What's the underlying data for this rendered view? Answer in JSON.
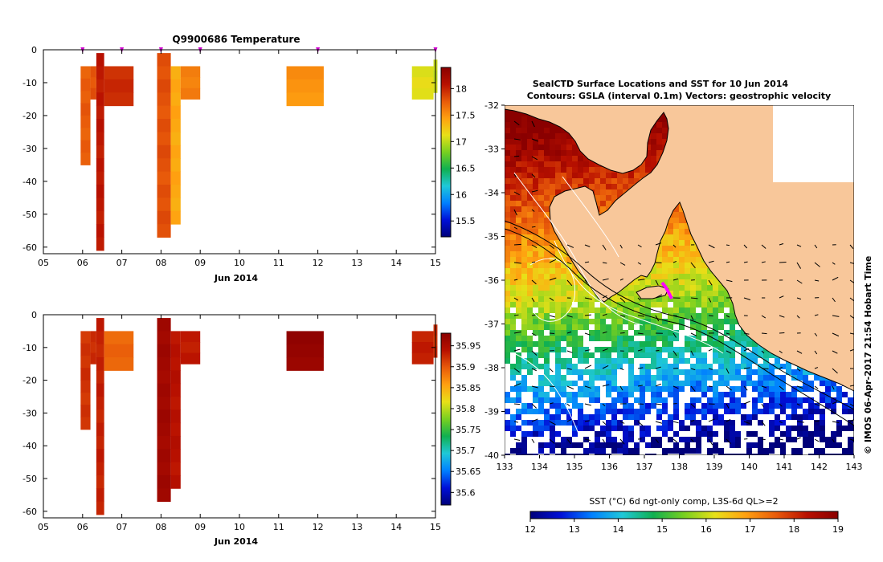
{
  "chart_data": [
    {
      "type": "heatmap",
      "panel": "temperature-depth-time",
      "title": "Q9900686  Temperature",
      "xlabel": "Jun 2014",
      "ylabel": "",
      "x_ticks": [
        "05",
        "06",
        "07",
        "08",
        "09",
        "10",
        "11",
        "12",
        "13",
        "14",
        "15"
      ],
      "y_ticks": [
        "0",
        "-10",
        "-20",
        "-30",
        "-40",
        "-50",
        "-60"
      ],
      "xlim": [
        5,
        15
      ],
      "ylim": [
        -62,
        0
      ],
      "profile_markers_day": [
        6,
        7,
        8,
        9,
        12,
        15
      ],
      "colorbar": {
        "ticks": [
          "15.5",
          "16",
          "16.5",
          "17",
          "17.5",
          "18"
        ],
        "range": [
          15.2,
          18.4
        ]
      },
      "cells": [
        {
          "x0": 5.95,
          "x1": 6.2,
          "top": -5,
          "bottom": -35,
          "value": 17.75
        },
        {
          "x0": 6.2,
          "x1": 6.35,
          "top": -5,
          "bottom": -15,
          "value": 17.8
        },
        {
          "x0": 6.35,
          "x1": 6.55,
          "top": -1,
          "bottom": -61,
          "value": 18.05
        },
        {
          "x0": 6.55,
          "x1": 7.3,
          "top": -5,
          "bottom": -17,
          "value": 17.95
        },
        {
          "x0": 7.9,
          "x1": 8.25,
          "top": -1,
          "bottom": -57,
          "value": 17.8
        },
        {
          "x0": 8.25,
          "x1": 8.5,
          "top": -5,
          "bottom": -53,
          "value": 17.4
        },
        {
          "x0": 8.5,
          "x1": 9.0,
          "top": -5,
          "bottom": -15,
          "value": 17.6
        },
        {
          "x0": 11.2,
          "x1": 12.15,
          "top": -5,
          "bottom": -17,
          "value": 17.5
        },
        {
          "x0": 14.4,
          "x1": 14.95,
          "top": -5,
          "bottom": -15,
          "value": 17.1
        },
        {
          "x0": 14.95,
          "x1": 15.05,
          "top": -3,
          "bottom": -13,
          "value": 17.0
        }
      ]
    },
    {
      "type": "heatmap",
      "panel": "salinity-depth-time",
      "title": "",
      "xlabel": "Jun 2014",
      "ylabel": "",
      "x_ticks": [
        "05",
        "06",
        "07",
        "08",
        "09",
        "10",
        "11",
        "12",
        "13",
        "14",
        "15"
      ],
      "y_ticks": [
        "0",
        "-10",
        "-20",
        "-30",
        "-40",
        "-50",
        "-60"
      ],
      "xlim": [
        5,
        15
      ],
      "ylim": [
        -62,
        0
      ],
      "colorbar": {
        "ticks": [
          "35.6",
          "35.65",
          "35.7",
          "35.75",
          "35.8",
          "35.85",
          "35.9",
          "35.95"
        ],
        "range": [
          35.57,
          35.98
        ]
      },
      "cells": [
        {
          "x0": 5.95,
          "x1": 6.2,
          "top": -5,
          "bottom": -35,
          "value": 35.92
        },
        {
          "x0": 6.2,
          "x1": 6.35,
          "top": -5,
          "bottom": -15,
          "value": 35.925
        },
        {
          "x0": 6.35,
          "x1": 6.55,
          "top": -1,
          "bottom": -61,
          "value": 35.93
        },
        {
          "x0": 6.55,
          "x1": 7.3,
          "top": -5,
          "bottom": -17,
          "value": 35.89
        },
        {
          "x0": 7.9,
          "x1": 8.25,
          "top": -1,
          "bottom": -57,
          "value": 35.96
        },
        {
          "x0": 8.25,
          "x1": 8.5,
          "top": -5,
          "bottom": -53,
          "value": 35.94
        },
        {
          "x0": 8.5,
          "x1": 9.0,
          "top": -5,
          "bottom": -15,
          "value": 35.935
        },
        {
          "x0": 11.2,
          "x1": 12.15,
          "top": -5,
          "bottom": -17,
          "value": 35.97
        },
        {
          "x0": 14.4,
          "x1": 14.95,
          "top": -5,
          "bottom": -15,
          "value": 35.93
        },
        {
          "x0": 14.95,
          "x1": 15.05,
          "top": -3,
          "bottom": -13,
          "value": 35.92
        }
      ]
    },
    {
      "type": "heatmap",
      "panel": "sst-map",
      "title": "SealCTD Surface Locations and SST for 10 Jun 2014",
      "subtitle": "Contours: GSLA (interval 0.1m) Vectors: geostrophic velocity",
      "x_ticks": [
        "133",
        "134",
        "135",
        "136",
        "137",
        "138",
        "139",
        "140",
        "141",
        "142",
        "143"
      ],
      "y_ticks": [
        "-32",
        "-33",
        "-34",
        "-35",
        "-36",
        "-37",
        "-38",
        "-39",
        "-40"
      ],
      "xlim": [
        133,
        143
      ],
      "ylim": [
        -40,
        -32
      ],
      "land_color": "#f8c79a",
      "track_color": "#ff00ff",
      "colorbar": {
        "label": "SST (°C) 6d ngt-only comp, L3S-6d QL>=2",
        "ticks": [
          "12",
          "13",
          "14",
          "15",
          "16",
          "17",
          "18",
          "19"
        ],
        "range": [
          12,
          19
        ]
      },
      "credit": "© IMOS 06-Apr-2017 21:54 Hobart Time"
    }
  ]
}
